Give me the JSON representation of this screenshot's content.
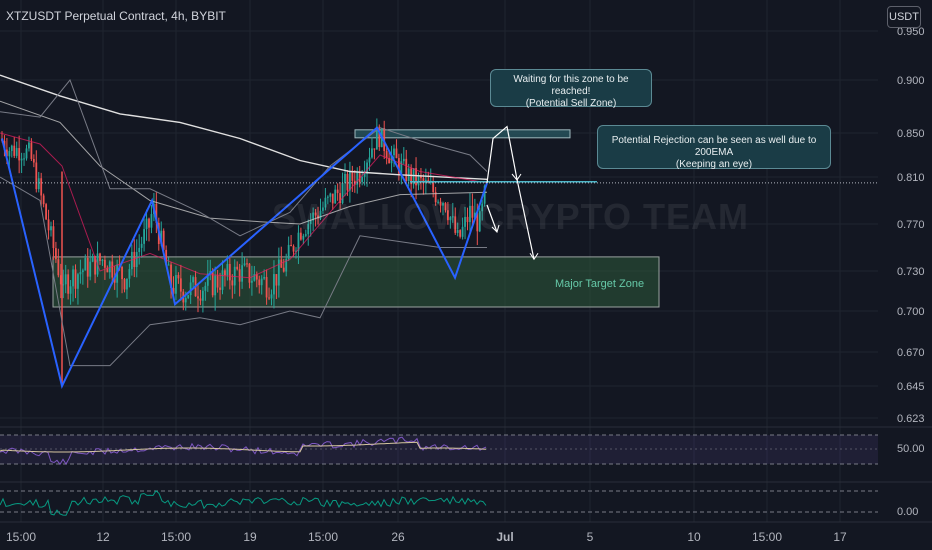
{
  "header": {
    "title": "XTZUSDT Perpetual Contract, 4h, BYBIT",
    "currency_button": "USDT"
  },
  "watermark": "SWALLOW CRYPTO TEAM",
  "annotations": {
    "sell_zone_note": [
      "Waiting for this zone to be reached!",
      "(Potential Sell Zone)"
    ],
    "rejection_note": [
      "Potential Rejection can be seen as well due to 200EMA",
      "(Keeping an eye)"
    ],
    "target_zone_label": "Major Target Zone"
  },
  "colors": {
    "background": "#131722",
    "up_candle": "#26a69a",
    "down_candle": "#ef5350",
    "pattern_line": "#2962ff",
    "ema": "#e0e0e0",
    "bollinger": "#787b86",
    "target_zone": "#2e5a3b",
    "sell_zone": "#2a5a63",
    "rsi": "#7e57c2",
    "osc": "#089981"
  },
  "chart_data": {
    "type": "candlestick",
    "symbol": "XTZUSDT",
    "timeframe": "4h",
    "exchange": "BYBIT",
    "y_ticks": [
      0.95,
      0.9,
      0.85,
      0.81,
      0.77,
      0.73,
      0.7,
      0.67,
      0.645,
      0.623
    ],
    "y_tick_labels": [
      "0.950",
      "0.900",
      "0.850",
      "0.810",
      "0.770",
      "0.730",
      "0.700",
      "0.670",
      "0.645",
      "0.623"
    ],
    "x_tick_labels": [
      "15:00",
      "12",
      "15:00",
      "19",
      "15:00",
      "26",
      "Jul",
      "5",
      "10",
      "15:00",
      "17"
    ],
    "last_price": 0.805,
    "zones": {
      "sell_zone": [
        0.846,
        0.853
      ],
      "rejection_level": 0.806,
      "target_zone": [
        0.703,
        0.742
      ]
    },
    "pattern_points": [
      {
        "x": "Jun 9",
        "y": 0.845
      },
      {
        "x": "Jun 10",
        "y": 0.645
      },
      {
        "x": "Jun 13",
        "y": 0.79
      },
      {
        "x": "Jun 16",
        "y": 0.705
      },
      {
        "x": "Jun 23",
        "y": 0.855
      },
      {
        "x": "Jun 28",
        "y": 0.725
      },
      {
        "x": "Jun 30",
        "y": 0.805
      }
    ],
    "projection_points": [
      {
        "x": "Jun 30",
        "y": 0.805
      },
      {
        "x": "Jul 1",
        "y": 0.845
      },
      {
        "x": "Jul 1",
        "y": 0.856
      },
      {
        "x": "Jul 2",
        "y": 0.808
      },
      {
        "x": "Jul 3",
        "y": 0.74
      }
    ],
    "panes": [
      {
        "name": "",
        "tick_label": "50.00"
      },
      {
        "name": "",
        "tick_label": "0.00"
      }
    ]
  }
}
